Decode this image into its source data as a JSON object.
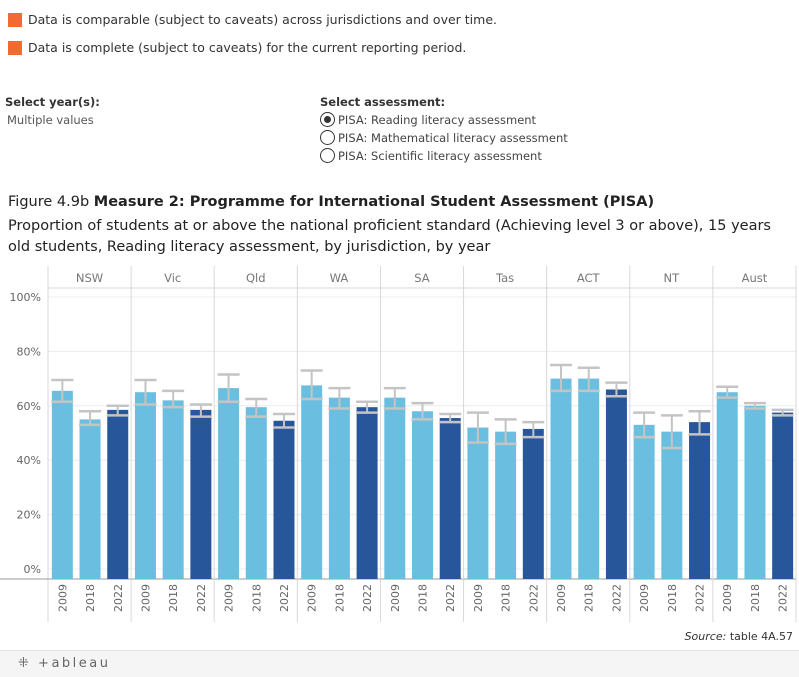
{
  "legend": [
    {
      "text": "Data is comparable (subject to caveats) across jurisdictions and over time.",
      "color": "#f26a32"
    },
    {
      "text": "Data is complete (subject to caveats) for the current reporting period.",
      "color": "#f26a32"
    }
  ],
  "filters": {
    "year": {
      "title": "Select year(s):",
      "value": "Multiple values"
    },
    "assessment": {
      "title": "Select assessment:",
      "options": [
        {
          "label": "PISA: Reading literacy assessment",
          "selected": true
        },
        {
          "label": "PISA: Mathematical literacy assessment",
          "selected": false
        },
        {
          "label": "PISA: Scientific literacy assessment",
          "selected": false
        }
      ]
    }
  },
  "figure": {
    "prefix": "Figure 4.9b",
    "title": "Measure 2: Programme for International Student Assessment (PISA)",
    "subtitle": "Proportion of students at or above the national proficient standard (Achieving level 3 or above), 15 years old students, Reading literacy assessment, by jurisdiction, by year"
  },
  "chart_data": {
    "type": "bar",
    "panels": [
      "NSW",
      "Vic",
      "Qld",
      "WA",
      "SA",
      "Tas",
      "ACT",
      "NT",
      "Aust"
    ],
    "years": [
      "2009",
      "2018",
      "2022"
    ],
    "y_ticks": [
      "0%",
      "20%",
      "40%",
      "60%",
      "80%",
      "100%"
    ],
    "ylim": [
      0,
      100
    ],
    "colors": {
      "2009": "#6abfe0",
      "2018": "#6abfe0",
      "2022": "#27579a",
      "error_bar": "#c4c4c4"
    },
    "values": [
      [
        65.5,
        55,
        58.5
      ],
      [
        65,
        62,
        58.5
      ],
      [
        66.5,
        59.5,
        54.5
      ],
      [
        67.5,
        63,
        59.5
      ],
      [
        63,
        58,
        55.5
      ],
      [
        52,
        50.5,
        51.5
      ],
      [
        70,
        70,
        66
      ],
      [
        53,
        50.5,
        54
      ],
      [
        65,
        60,
        57.5
      ]
    ],
    "ci_low": [
      [
        61.5,
        53,
        56.5
      ],
      [
        60.5,
        59.5,
        56
      ],
      [
        61.5,
        56,
        52
      ],
      [
        62.5,
        59,
        57.5
      ],
      [
        59,
        55,
        54
      ],
      [
        46.5,
        46,
        48.5
      ],
      [
        65.5,
        65.5,
        63.5
      ],
      [
        48.5,
        44.5,
        49.5
      ],
      [
        63,
        59,
        56.5
      ]
    ],
    "ci_high": [
      [
        69.5,
        58,
        60
      ],
      [
        69.5,
        65.5,
        60.5
      ],
      [
        71.5,
        62.5,
        57
      ],
      [
        73,
        66.5,
        61.5
      ],
      [
        66.5,
        61,
        57
      ],
      [
        57.5,
        55,
        54
      ],
      [
        75,
        74,
        68.5
      ],
      [
        57.5,
        56.5,
        58
      ],
      [
        67,
        61,
        58.5
      ]
    ],
    "source_label": "Source:",
    "source_text": "table 4A.57"
  },
  "footer": {
    "logo_text": "+ableau",
    "logo_icon": "tableau-cross-icon"
  }
}
